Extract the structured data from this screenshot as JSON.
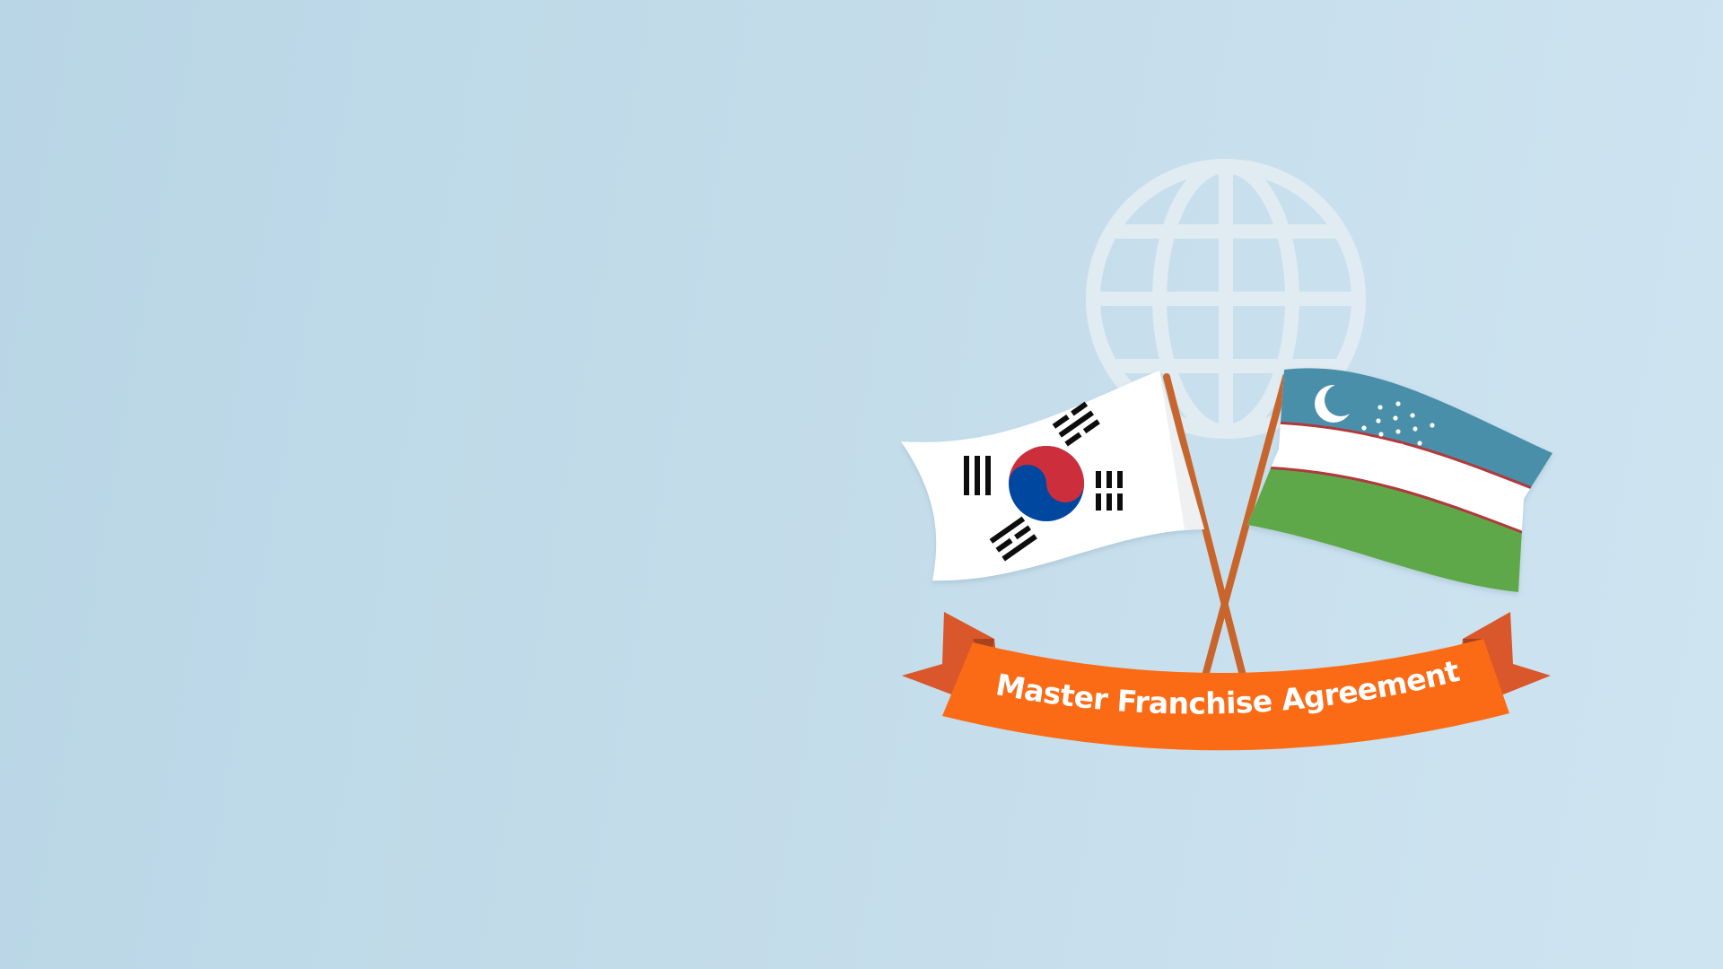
{
  "banner": {
    "text": "Master Franchise Agreement"
  },
  "flags": {
    "left": "south-korea-flag",
    "right": "uzbekistan-flag"
  },
  "icons": {
    "background": "globe-icon"
  },
  "colors": {
    "background": "#c3dcea",
    "banner_front": "#fb6b15",
    "banner_back": "#d9572a",
    "pole": "#c8652c",
    "korea_red": "#cd2e3a",
    "korea_blue": "#0047a0",
    "uzbek_blue": "#4a8faa",
    "uzbek_green": "#5ea84a",
    "uzbek_red": "#b1373b"
  }
}
